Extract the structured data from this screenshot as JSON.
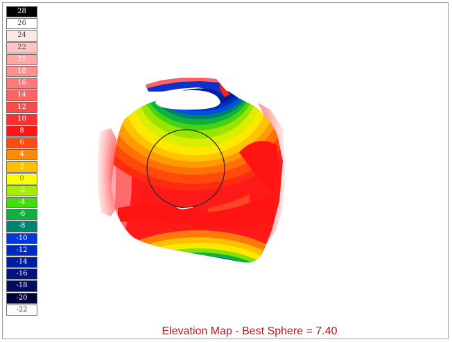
{
  "legend": {
    "cells": [
      {
        "label": "28",
        "color": "#000000",
        "text": "#ffffff"
      },
      {
        "label": "26",
        "color": "#ffffff",
        "text": "#444444"
      },
      {
        "label": "24",
        "color": "#ffe8e8",
        "text": "#444444"
      },
      {
        "label": "22",
        "color": "#ffc4c4",
        "text": "#444444"
      },
      {
        "label": "21",
        "color": "#ffa8a8",
        "text": "#ffffff"
      },
      {
        "label": "18",
        "color": "#ff9090",
        "text": "#ffffff"
      },
      {
        "label": "16",
        "color": "#ff7a7a",
        "text": "#ffffff"
      },
      {
        "label": "14",
        "color": "#ff6464",
        "text": "#ffffff"
      },
      {
        "label": "12",
        "color": "#ff4a4a",
        "text": "#ffffff"
      },
      {
        "label": "10",
        "color": "#ff3030",
        "text": "#ffffff"
      },
      {
        "label": "8",
        "color": "#ff1414",
        "text": "#ffffff"
      },
      {
        "label": "6",
        "color": "#ff4a10",
        "text": "#ffffff"
      },
      {
        "label": "4",
        "color": "#ff8a08",
        "text": "#ffffff"
      },
      {
        "label": "2",
        "color": "#ffc000",
        "text": "#ffffff"
      },
      {
        "label": "0",
        "color": "#ffff00",
        "text": "#666666"
      },
      {
        "label": "-2",
        "color": "#a8ec00",
        "text": "#ffffff"
      },
      {
        "label": "-4",
        "color": "#44dc10",
        "text": "#ffffff"
      },
      {
        "label": "-6",
        "color": "#10b040",
        "text": "#ffffff"
      },
      {
        "label": "-8",
        "color": "#008270",
        "text": "#ffffff"
      },
      {
        "label": "-10",
        "color": "#0038e0",
        "text": "#ffffff"
      },
      {
        "label": "-12",
        "color": "#0028c0",
        "text": "#ffffff"
      },
      {
        "label": "-14",
        "color": "#001ca0",
        "text": "#ffffff"
      },
      {
        "label": "-16",
        "color": "#001480",
        "text": "#ffffff"
      },
      {
        "label": "-18",
        "color": "#000c60",
        "text": "#ffffff"
      },
      {
        "label": "-20",
        "color": "#000038",
        "text": "#ffffff"
      },
      {
        "label": "-22",
        "color": "#ffffff",
        "text": "#333333"
      }
    ]
  },
  "map": {
    "title": "Elevation Map -  Best Sphere = 7.40",
    "title_color": "#c0141c",
    "frame_color": "#9a9a9a"
  }
}
